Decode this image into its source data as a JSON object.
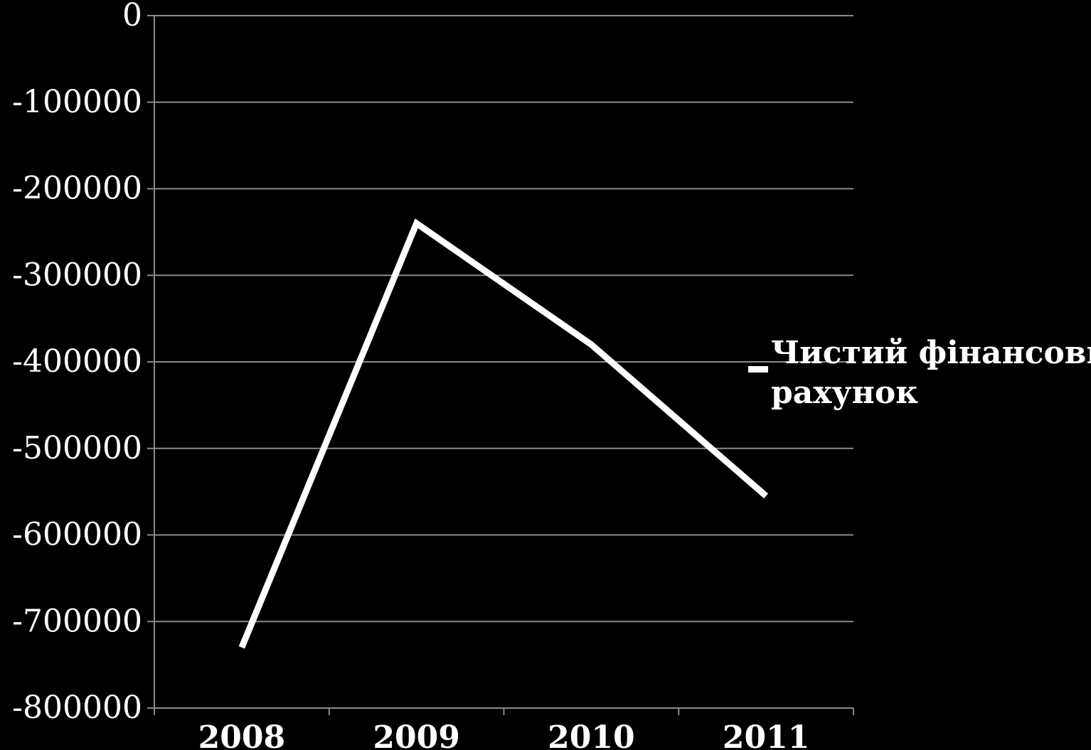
{
  "chart_data": {
    "type": "line",
    "categories": [
      "2008",
      "2009",
      "2010",
      "2011"
    ],
    "series": [
      {
        "name": "Чистий фінансовий рахунок",
        "values": [
          -730000,
          -240000,
          -380000,
          -555000
        ],
        "color": "#ffffff"
      }
    ],
    "ylim": [
      -800000,
      0
    ],
    "yticks": [
      0,
      -100000,
      -200000,
      -300000,
      -400000,
      -500000,
      -600000,
      -700000,
      -800000
    ],
    "ytick_labels": [
      "0",
      "-100000",
      "-200000",
      "-300000",
      "-400000",
      "-500000",
      "-600000",
      "-700000",
      "-800000"
    ],
    "grid": true,
    "legend": {
      "position": "right",
      "lines": [
        "Чистий фінансовий",
        "рахунок"
      ]
    },
    "background": "#000000",
    "gridcolor": "#8a8a8a"
  }
}
